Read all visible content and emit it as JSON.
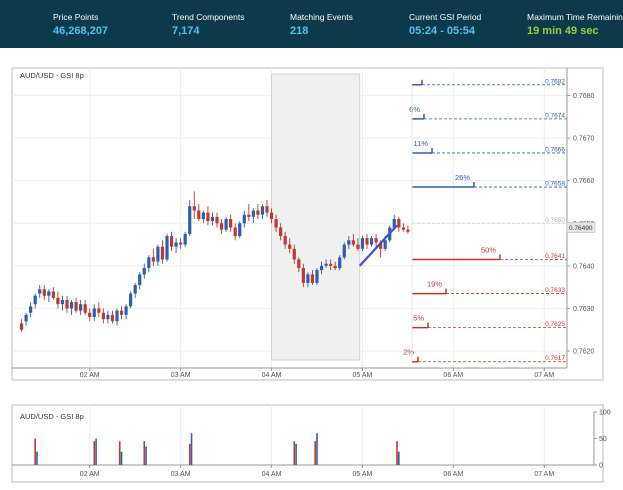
{
  "stats": [
    {
      "label": "Price Points",
      "value": "46,268,207",
      "color": "#4fc3f7"
    },
    {
      "label": "Trend Components",
      "value": "7,174",
      "color": "#4fc3f7"
    },
    {
      "label": "Matching Events",
      "value": "218",
      "color": "#4fc3f7"
    },
    {
      "label": "Current GSI Period",
      "value": "05:24 - 05:54",
      "color": "#4fc3f7"
    },
    {
      "label": "Maximum Time Remaining",
      "value": "19 min 49 sec",
      "color": "#9ccc3c"
    }
  ],
  "chart_data": [
    {
      "type": "candlestick",
      "title": "AUD/USD - GSI 8p",
      "ylim": [
        0.76165,
        0.76855
      ],
      "y_ticks": [
        "0.7620",
        "0.7630",
        "0.7640",
        "0.7650",
        "0.7660",
        "0.7670",
        "0.7680"
      ],
      "x_ticks": [
        "02 AM",
        "03 AM",
        "04 AM",
        "05 AM",
        "06 AM",
        "07 AM"
      ],
      "time_range_hours": [
        1.2,
        7.25
      ],
      "current_price": "0.76490",
      "grid": true,
      "highlight_period": [
        4.0,
        4.97
      ],
      "candles": [
        [
          1.25,
          0.76265,
          0.76275,
          0.76245,
          0.7625
        ],
        [
          1.3,
          0.7627,
          0.7629,
          0.7626,
          0.76285
        ],
        [
          1.35,
          0.7629,
          0.76315,
          0.7628,
          0.76305
        ],
        [
          1.4,
          0.7631,
          0.76335,
          0.763,
          0.7633
        ],
        [
          1.45,
          0.76335,
          0.76355,
          0.76325,
          0.76345
        ],
        [
          1.5,
          0.76345,
          0.76355,
          0.7632,
          0.7633
        ],
        [
          1.55,
          0.7633,
          0.76345,
          0.76315,
          0.7634
        ],
        [
          1.6,
          0.7634,
          0.7635,
          0.7632,
          0.76325
        ],
        [
          1.65,
          0.76325,
          0.7634,
          0.763,
          0.7631
        ],
        [
          1.7,
          0.7631,
          0.7633,
          0.76295,
          0.7632
        ],
        [
          1.75,
          0.7632,
          0.7633,
          0.7629,
          0.763
        ],
        [
          1.8,
          0.763,
          0.7632,
          0.76285,
          0.76315
        ],
        [
          1.85,
          0.76315,
          0.76325,
          0.7629,
          0.76295
        ],
        [
          1.9,
          0.76295,
          0.7632,
          0.76285,
          0.7631
        ],
        [
          1.95,
          0.7631,
          0.7632,
          0.76285,
          0.7629
        ],
        [
          2.0,
          0.7629,
          0.763,
          0.7627,
          0.7628
        ],
        [
          2.05,
          0.7628,
          0.7631,
          0.7627,
          0.763
        ],
        [
          2.1,
          0.763,
          0.76315,
          0.7628,
          0.7629
        ],
        [
          2.15,
          0.7629,
          0.763,
          0.76265,
          0.76275
        ],
        [
          2.2,
          0.76275,
          0.76295,
          0.76265,
          0.76285
        ],
        [
          2.25,
          0.76285,
          0.76295,
          0.76265,
          0.7627
        ],
        [
          2.3,
          0.7627,
          0.763,
          0.7626,
          0.76295
        ],
        [
          2.35,
          0.76295,
          0.76305,
          0.76275,
          0.76285
        ],
        [
          2.4,
          0.76285,
          0.7631,
          0.76275,
          0.76305
        ],
        [
          2.45,
          0.76305,
          0.7634,
          0.763,
          0.76335
        ],
        [
          2.5,
          0.76335,
          0.7636,
          0.76325,
          0.76355
        ],
        [
          2.55,
          0.76355,
          0.76385,
          0.76345,
          0.7638
        ],
        [
          2.6,
          0.7638,
          0.76405,
          0.7637,
          0.76395
        ],
        [
          2.65,
          0.76395,
          0.76425,
          0.76385,
          0.7642
        ],
        [
          2.7,
          0.7642,
          0.7644,
          0.764,
          0.7641
        ],
        [
          2.75,
          0.7641,
          0.7645,
          0.764,
          0.76445
        ],
        [
          2.8,
          0.76445,
          0.7646,
          0.76405,
          0.76415
        ],
        [
          2.85,
          0.76415,
          0.76475,
          0.7641,
          0.7647
        ],
        [
          2.9,
          0.7647,
          0.7648,
          0.76435,
          0.76445
        ],
        [
          2.95,
          0.76445,
          0.76465,
          0.7643,
          0.76455
        ],
        [
          3.0,
          0.76455,
          0.76465,
          0.7644,
          0.7645
        ],
        [
          3.05,
          0.7645,
          0.7648,
          0.76445,
          0.76475
        ],
        [
          3.1,
          0.76475,
          0.76555,
          0.7647,
          0.7654
        ],
        [
          3.15,
          0.7654,
          0.76575,
          0.7651,
          0.7653
        ],
        [
          3.2,
          0.7653,
          0.76545,
          0.76505,
          0.7651
        ],
        [
          3.25,
          0.7651,
          0.7653,
          0.765,
          0.76525
        ],
        [
          3.3,
          0.76525,
          0.7654,
          0.76495,
          0.76505
        ],
        [
          3.35,
          0.76505,
          0.76525,
          0.76495,
          0.76515
        ],
        [
          3.4,
          0.76515,
          0.76525,
          0.7649,
          0.765
        ],
        [
          3.45,
          0.765,
          0.7651,
          0.76475,
          0.76485
        ],
        [
          3.5,
          0.76485,
          0.76515,
          0.7648,
          0.7651
        ],
        [
          3.55,
          0.7651,
          0.7652,
          0.7648,
          0.7649
        ],
        [
          3.6,
          0.7649,
          0.765,
          0.7646,
          0.7647
        ],
        [
          3.65,
          0.7647,
          0.76505,
          0.76465,
          0.765
        ],
        [
          3.7,
          0.765,
          0.7653,
          0.7649,
          0.7652
        ],
        [
          3.75,
          0.7652,
          0.76545,
          0.76505,
          0.76515
        ],
        [
          3.8,
          0.76515,
          0.76535,
          0.765,
          0.7653
        ],
        [
          3.85,
          0.7653,
          0.76545,
          0.7651,
          0.7652
        ],
        [
          3.9,
          0.7652,
          0.76545,
          0.7651,
          0.7654
        ],
        [
          3.95,
          0.7654,
          0.76555,
          0.76515,
          0.76525
        ],
        [
          4.0,
          0.76525,
          0.76535,
          0.765,
          0.7651
        ],
        [
          4.05,
          0.7651,
          0.7652,
          0.7648,
          0.7649
        ],
        [
          4.1,
          0.7649,
          0.765,
          0.7646,
          0.7647
        ],
        [
          4.15,
          0.7647,
          0.7648,
          0.7644,
          0.7645
        ],
        [
          4.2,
          0.7645,
          0.76465,
          0.7643,
          0.7644
        ],
        [
          4.25,
          0.7644,
          0.7645,
          0.76405,
          0.76415
        ],
        [
          4.3,
          0.76415,
          0.7642,
          0.76385,
          0.76395
        ],
        [
          4.35,
          0.76395,
          0.76405,
          0.7635,
          0.7636
        ],
        [
          4.4,
          0.7636,
          0.76385,
          0.7635,
          0.7638
        ],
        [
          4.45,
          0.7638,
          0.7639,
          0.76355,
          0.7636
        ],
        [
          4.5,
          0.7636,
          0.76395,
          0.76355,
          0.7639
        ],
        [
          4.55,
          0.7639,
          0.7641,
          0.7638,
          0.764
        ],
        [
          4.6,
          0.764,
          0.76415,
          0.76395,
          0.76405
        ],
        [
          4.65,
          0.76405,
          0.76415,
          0.7639,
          0.764
        ],
        [
          4.7,
          0.764,
          0.7641,
          0.7639,
          0.76395
        ],
        [
          4.75,
          0.76395,
          0.76425,
          0.7639,
          0.7642
        ],
        [
          4.8,
          0.7642,
          0.76455,
          0.76415,
          0.7645
        ],
        [
          4.85,
          0.7645,
          0.7647,
          0.7644,
          0.7646
        ],
        [
          4.9,
          0.7646,
          0.76475,
          0.76445,
          0.7645
        ],
        [
          4.95,
          0.7645,
          0.76465,
          0.76435,
          0.7644
        ],
        [
          5.0,
          0.7644,
          0.7647,
          0.76435,
          0.76465
        ],
        [
          5.05,
          0.76465,
          0.76475,
          0.7644,
          0.7645
        ],
        [
          5.1,
          0.7645,
          0.7647,
          0.76445,
          0.76465
        ],
        [
          5.15,
          0.76465,
          0.76475,
          0.76445,
          0.76455
        ],
        [
          5.2,
          0.76455,
          0.7646,
          0.7642,
          0.7644
        ],
        [
          5.25,
          0.7644,
          0.7647,
          0.76435,
          0.7646
        ],
        [
          5.3,
          0.7646,
          0.76495,
          0.76455,
          0.7649
        ],
        [
          5.35,
          0.7649,
          0.7652,
          0.76485,
          0.7651
        ],
        [
          5.4,
          0.7651,
          0.76515,
          0.7648,
          0.7649
        ],
        [
          5.45,
          0.7649,
          0.765,
          0.7648,
          0.76485
        ],
        [
          5.5,
          0.76485,
          0.76495,
          0.76475,
          0.7648
        ]
      ],
      "trend_line": [
        [
          4.97,
          0.764
        ],
        [
          5.38,
          0.76495
        ]
      ],
      "projections_up": [
        {
          "label": "",
          "price": "0.7682",
          "target": 0.76825
        },
        {
          "label": "6%",
          "price": "0.7674",
          "target": 0.76745
        },
        {
          "label": "11%",
          "price": "0.7666",
          "target": 0.76665
        },
        {
          "label": "26%",
          "price": "0.7658",
          "target": 0.76585
        }
      ],
      "projections_down": [
        {
          "label": "50%",
          "price": "0.7641",
          "target": 0.76415
        },
        {
          "label": "19%",
          "price": "0.7633",
          "target": 0.76335
        },
        {
          "label": "5%",
          "price": "0.7625",
          "target": 0.76255
        },
        {
          "label": "2%",
          "price": "0.7617",
          "target": 0.76175
        }
      ],
      "reference_price": "0.7650"
    },
    {
      "type": "bar",
      "title": "AUD/USD - GSI 8p",
      "ylim": [
        0,
        100
      ],
      "y_ticks": [
        "100",
        "50",
        "0"
      ],
      "x_ticks": [
        "02 AM",
        "03 AM",
        "04 AM",
        "05 AM",
        "06 AM",
        "07 AM"
      ],
      "series": [
        {
          "color": "#c0392b",
          "bars": [
            [
              1.4,
              50
            ],
            [
              2.05,
              45
            ],
            [
              2.33,
              45
            ],
            [
              2.6,
              45
            ],
            [
              3.1,
              40
            ],
            [
              4.25,
              45
            ],
            [
              4.48,
              45
            ],
            [
              5.38,
              45
            ]
          ]
        },
        {
          "color": "#2b5fb0",
          "bars": [
            [
              1.42,
              25
            ],
            [
              2.07,
              50
            ],
            [
              2.35,
              25
            ],
            [
              2.62,
              35
            ],
            [
              3.12,
              60
            ],
            [
              4.27,
              40
            ],
            [
              4.5,
              60
            ],
            [
              5.4,
              25
            ]
          ]
        }
      ]
    }
  ]
}
